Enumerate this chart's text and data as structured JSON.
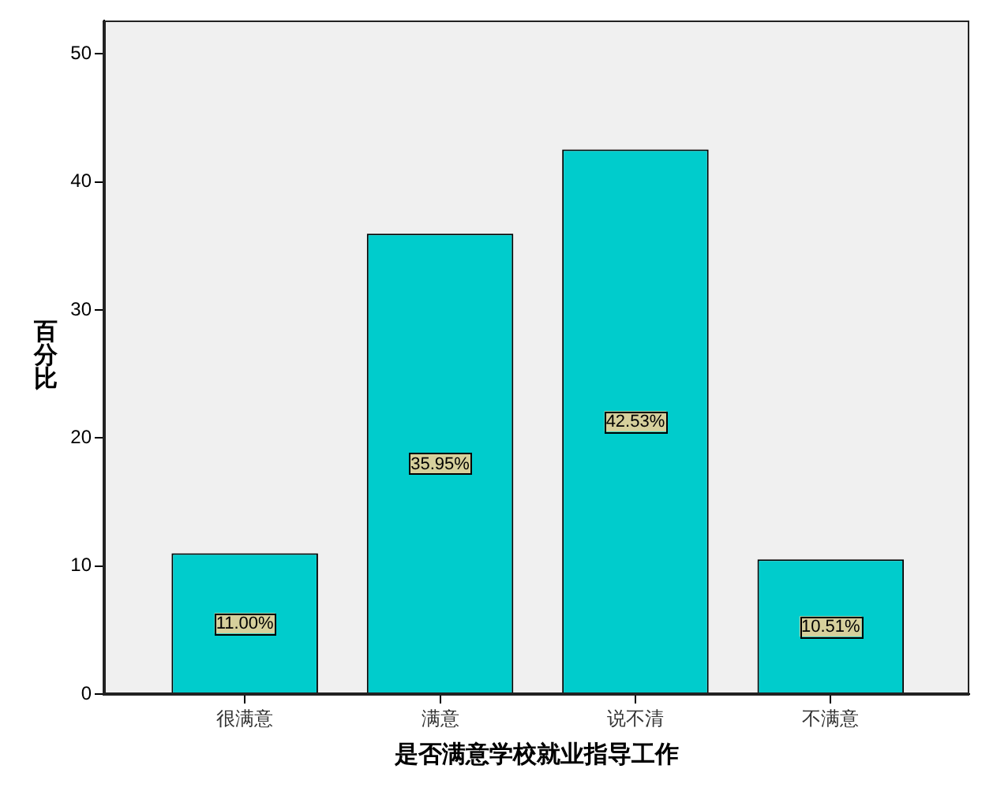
{
  "chart_data": {
    "type": "bar",
    "xlabel": "是否满意学校就业指导工作",
    "ylabel": "百分比",
    "categories": [
      "很满意",
      "满意",
      "说不清",
      "不满意"
    ],
    "values": [
      11.0,
      35.95,
      42.53,
      10.51
    ],
    "value_labels": [
      "11.00%",
      "35.95%",
      "42.53%",
      "10.51%"
    ],
    "color": "#00cccc",
    "ylim": [
      0,
      52.6
    ],
    "yticks": [
      0,
      10,
      20,
      30,
      40,
      50
    ],
    "grid": false,
    "legend": false
  }
}
